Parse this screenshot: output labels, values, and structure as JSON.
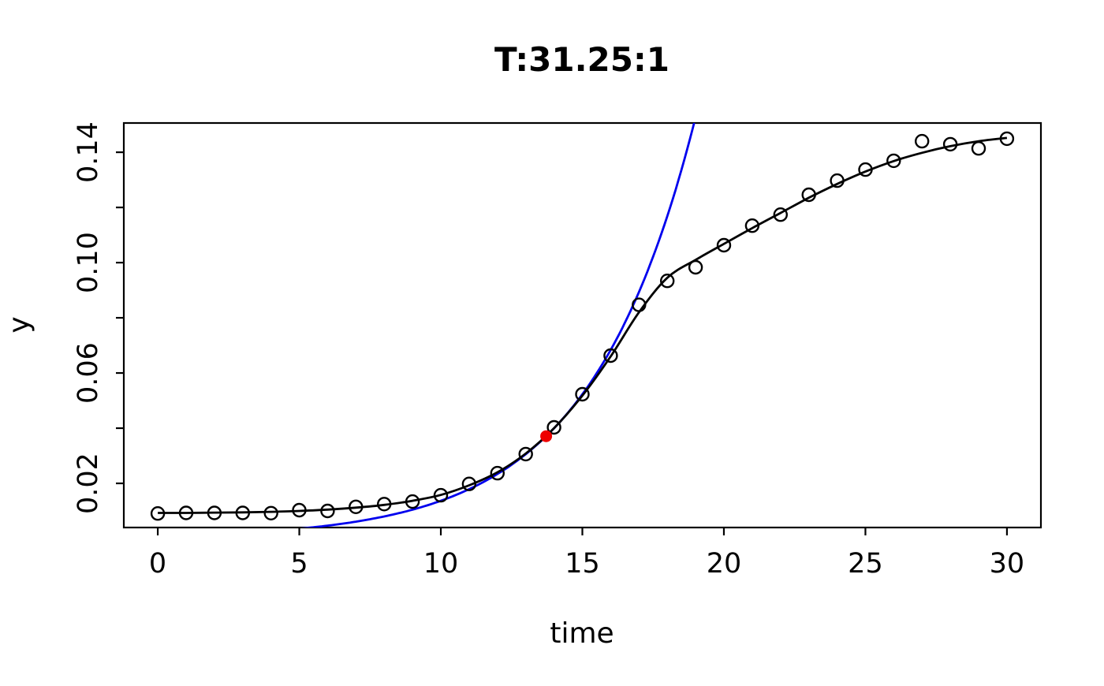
{
  "title": "T:31.25:1",
  "chart_data": {
    "type": "scatter",
    "title": "T:31.25:1",
    "xlabel": "time",
    "ylabel": "y",
    "xlim": [
      -1.2,
      31.2
    ],
    "ylim": [
      0.004,
      0.1506
    ],
    "grid": false,
    "legend": null,
    "x_ticks": [
      0,
      5,
      10,
      15,
      20,
      25,
      30
    ],
    "x_tick_labels": [
      "0",
      "5",
      "10",
      "15",
      "20",
      "25",
      "30"
    ],
    "y_ticks": [
      0.02,
      0.04,
      0.06,
      0.08,
      0.1,
      0.12,
      0.14
    ],
    "y_tick_labels": [
      "0.02",
      "",
      "0.06",
      "",
      "0.10",
      "",
      "0.14"
    ],
    "series": [
      {
        "name": "observed-points",
        "type": "scatter",
        "marker": "open-circle",
        "color": "#000000",
        "x": [
          0,
          1,
          2,
          3,
          4,
          5,
          6,
          7,
          8,
          9,
          10,
          11,
          12,
          13,
          14,
          15,
          16,
          17,
          18,
          19,
          20,
          21,
          22,
          23,
          24,
          25,
          26,
          27,
          28,
          29,
          30
        ],
        "y": [
          0.0091,
          0.0093,
          0.0093,
          0.0093,
          0.0092,
          0.0103,
          0.01,
          0.0115,
          0.0125,
          0.0134,
          0.0157,
          0.0198,
          0.0237,
          0.0306,
          0.0403,
          0.0523,
          0.0663,
          0.0847,
          0.0934,
          0.0983,
          0.1063,
          0.1134,
          0.1174,
          0.1246,
          0.1297,
          0.1337,
          0.1369,
          0.144,
          0.1429,
          0.1414,
          0.1449
        ]
      },
      {
        "name": "fitted-growth-curve",
        "type": "line",
        "color": "#000000",
        "x": [
          0,
          1,
          2,
          3,
          4,
          5,
          6,
          7,
          8,
          9,
          10,
          11,
          12,
          13,
          14,
          15,
          16,
          17,
          18,
          19,
          20,
          21,
          22,
          23,
          24,
          25,
          26,
          27,
          28,
          29,
          30
        ],
        "y": [
          0.0093,
          0.0093,
          0.0094,
          0.0095,
          0.0097,
          0.01,
          0.0105,
          0.0112,
          0.0122,
          0.0137,
          0.0158,
          0.0193,
          0.024,
          0.0308,
          0.04,
          0.0518,
          0.066,
          0.082,
          0.0945,
          0.101,
          0.1068,
          0.1125,
          0.118,
          0.1235,
          0.1285,
          0.133,
          0.1368,
          0.1398,
          0.1422,
          0.144,
          0.1452
        ]
      },
      {
        "name": "exponential-tangent-curve",
        "type": "exponential",
        "color": "#0000ee",
        "formula": "y = 0.0371 * exp(0.268 * (t - 13.72))",
        "y0": 0.0371,
        "rate": 0.268,
        "t0": 13.72,
        "t_range": [
          3.5,
          19.4
        ]
      },
      {
        "name": "tangent-point",
        "type": "point",
        "marker": "filled-circle",
        "color": "#ee0000",
        "x": 13.72,
        "y": 0.0371
      }
    ]
  }
}
